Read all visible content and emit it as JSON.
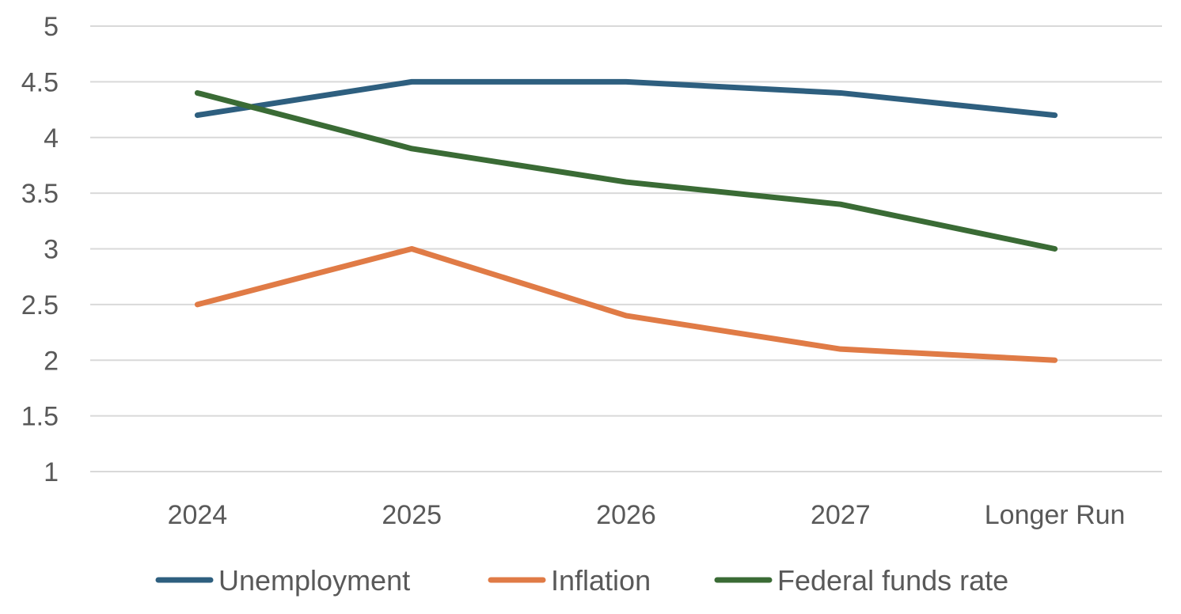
{
  "chart_data": {
    "type": "line",
    "title": "",
    "xlabel": "",
    "ylabel": "",
    "categories": [
      "2024",
      "2025",
      "2026",
      "2027",
      "Longer Run"
    ],
    "ylim": [
      1,
      5
    ],
    "yticks": [
      "1",
      "1.5",
      "2",
      "2.5",
      "3",
      "3.5",
      "4",
      "4.5",
      "5"
    ],
    "grid": "horizontal",
    "legend_position": "bottom",
    "series": [
      {
        "name": "Unemployment",
        "color": "#2e5f7f",
        "values": [
          4.2,
          4.5,
          4.5,
          4.4,
          4.2
        ]
      },
      {
        "name": "Inflation",
        "color": "#e07b46",
        "values": [
          2.5,
          3.0,
          2.4,
          2.1,
          2.0
        ]
      },
      {
        "name": "Federal funds rate",
        "color": "#3a6b35",
        "values": [
          4.4,
          3.9,
          3.6,
          3.4,
          3.0
        ]
      }
    ]
  }
}
